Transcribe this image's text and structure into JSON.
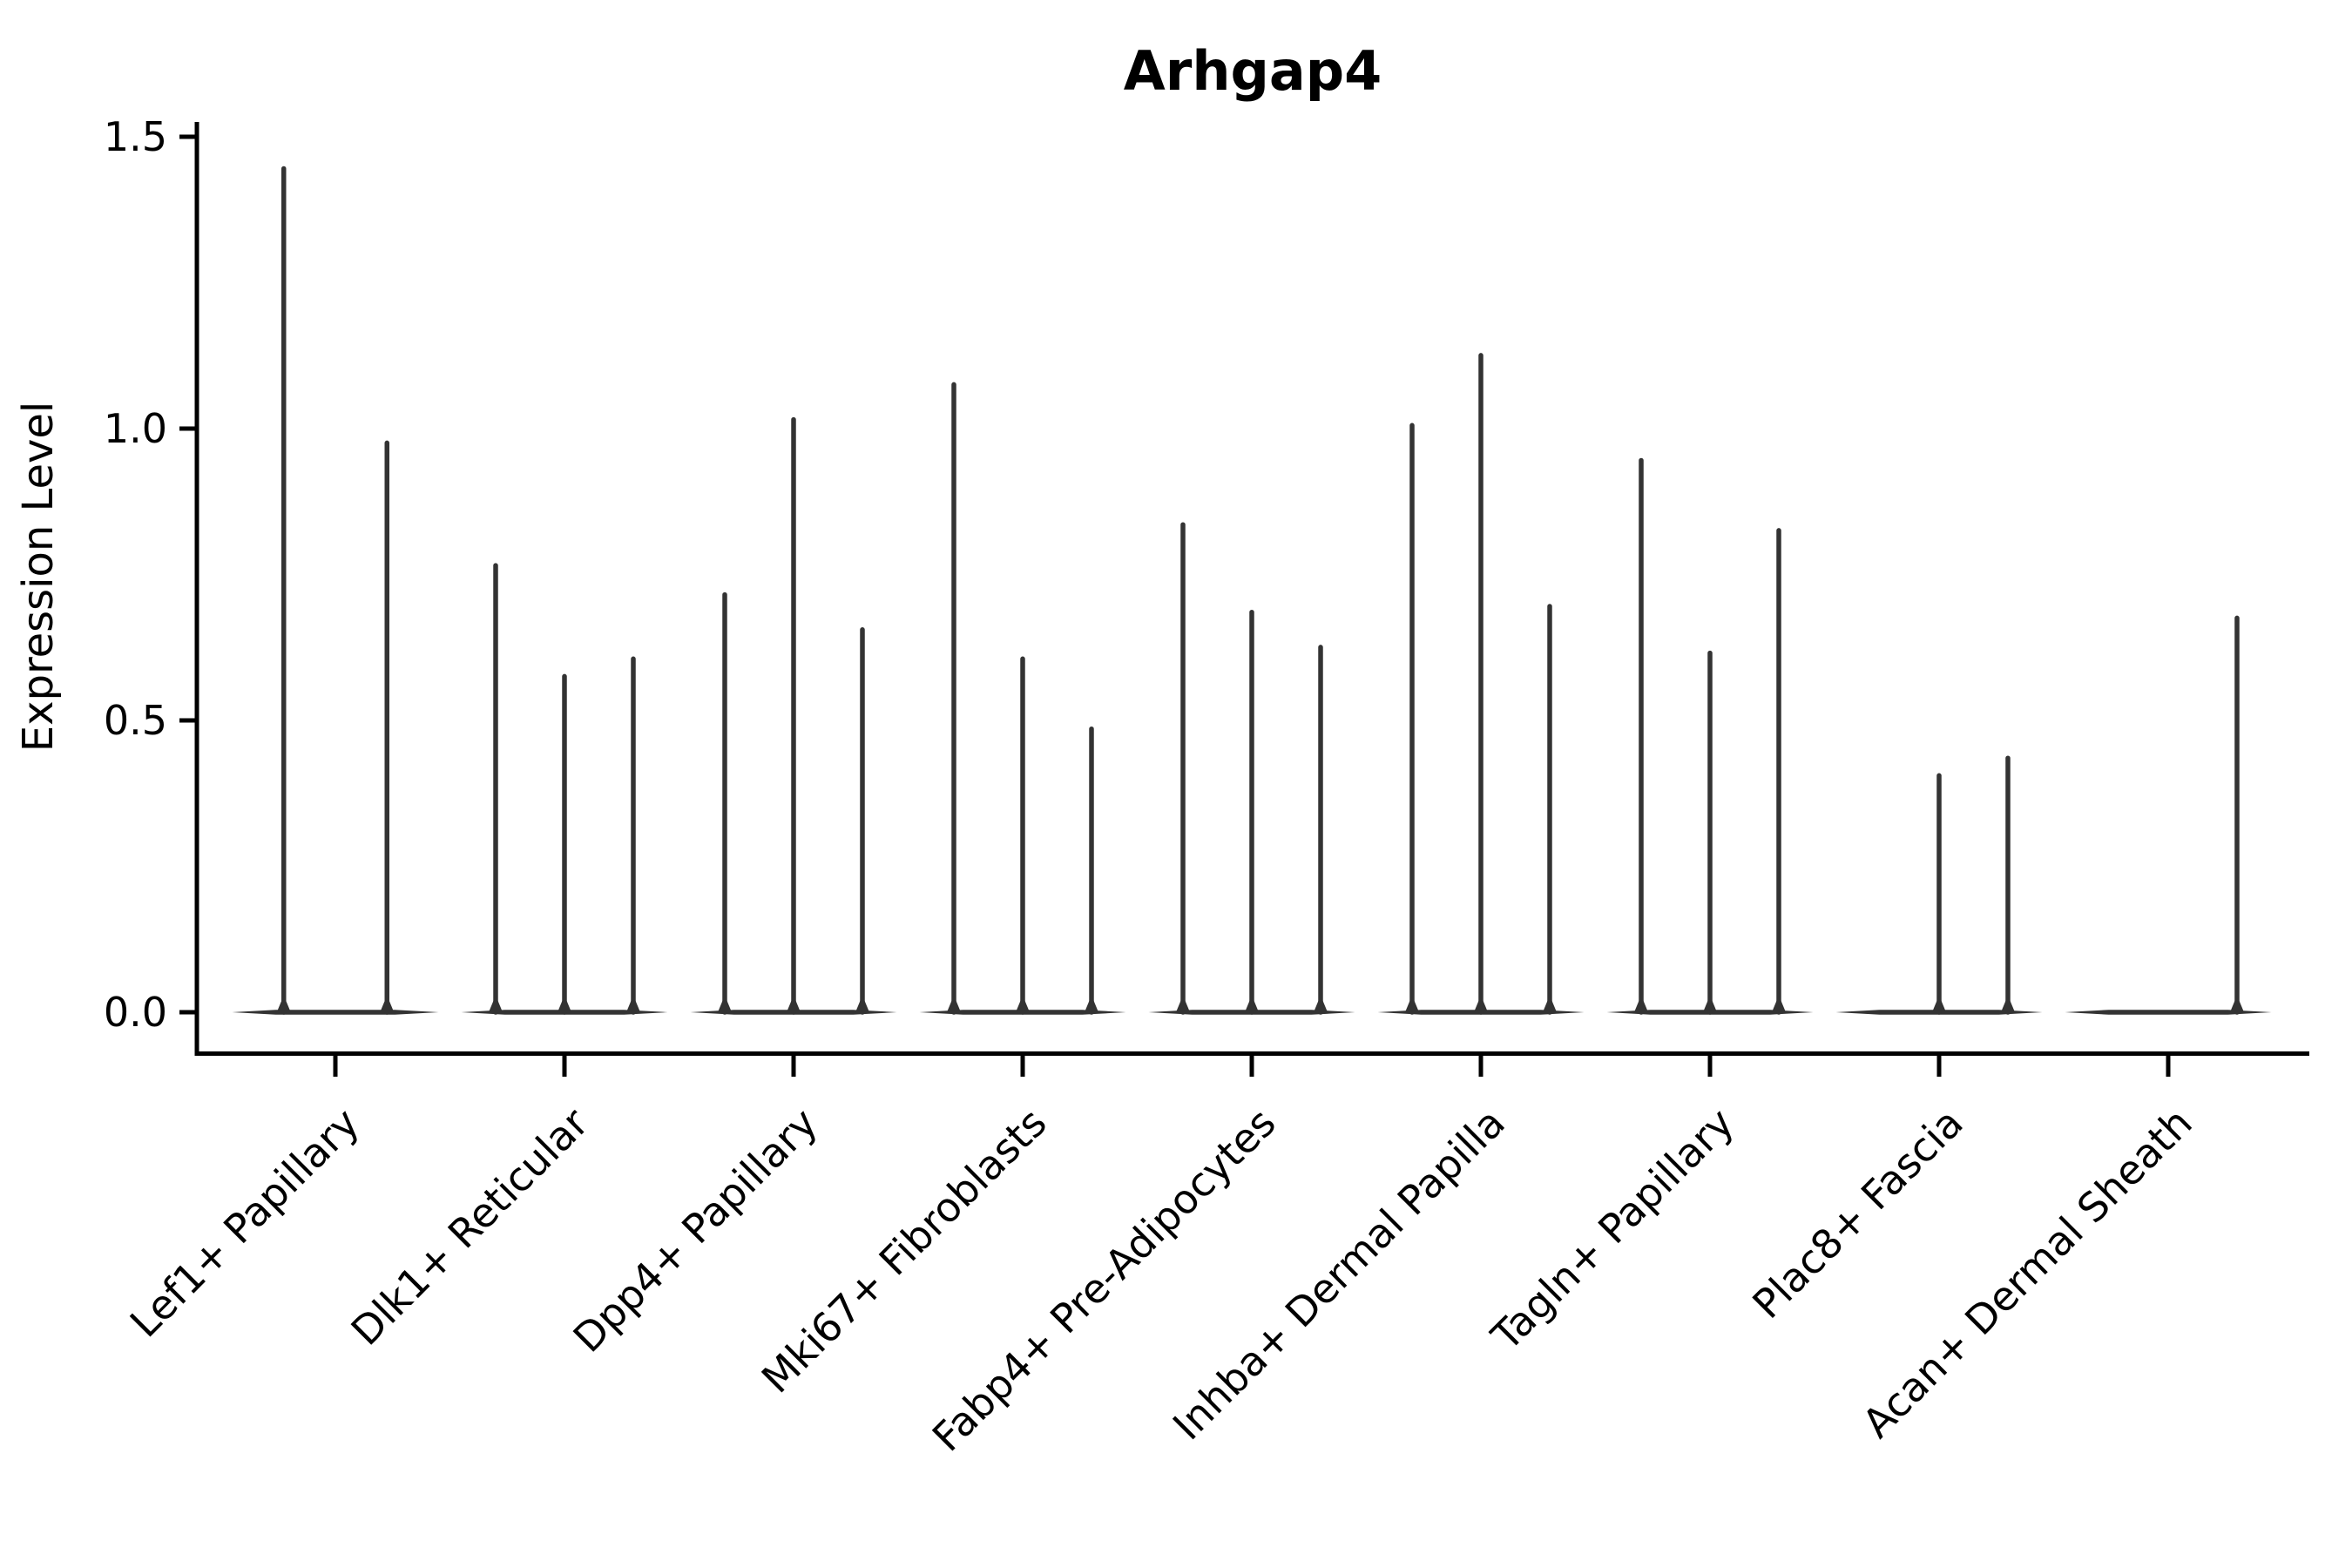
{
  "chart_data": {
    "type": "violin",
    "title": "Arhgap4",
    "ylabel": "Expression Level",
    "xlabel": "",
    "ylim": [
      0,
      1.5
    ],
    "yticks": [
      "0.0",
      "0.5",
      "1.0",
      "1.5"
    ],
    "grid": false,
    "legend": "none",
    "colors": {
      "axis_line": "#000000",
      "violin_stroke": "#333333",
      "text": "#000000",
      "background": "#ffffff"
    },
    "categories": [
      "Lef1+ Papillary",
      "Dlk1+ Reticular",
      "Dpp4+ Papillary",
      "Mki67+ Fibroblasts",
      "Fabp4+ Pre-Adipocytes",
      "Inhba+ Dermal Papilla",
      "Tagln+ Papillary",
      "Plac8+ Fascia",
      "Acan+ Dermal Sheath"
    ],
    "groups": [
      {
        "label": "Lef1+ Papillary",
        "violins": [
          {
            "slot": -0.75,
            "max": 1.45
          },
          {
            "slot": 0.75,
            "max": 0.98
          }
        ]
      },
      {
        "label": "Dlk1+ Reticular",
        "violins": [
          {
            "slot": -1,
            "max": 0.77
          },
          {
            "slot": 0,
            "max": 0.58
          },
          {
            "slot": 1,
            "max": 0.61
          }
        ]
      },
      {
        "label": "Dpp4+ Papillary",
        "violins": [
          {
            "slot": -1,
            "max": 0.72
          },
          {
            "slot": 0,
            "max": 1.02
          },
          {
            "slot": 1,
            "max": 0.66
          }
        ]
      },
      {
        "label": "Mki67+ Fibroblasts",
        "violins": [
          {
            "slot": -1,
            "max": 1.08
          },
          {
            "slot": 0,
            "max": 0.61
          },
          {
            "slot": 1,
            "max": 0.49
          }
        ]
      },
      {
        "label": "Fabp4+ Pre-Adipocytes",
        "violins": [
          {
            "slot": -1,
            "max": 0.84
          },
          {
            "slot": 0,
            "max": 0.69
          },
          {
            "slot": 1,
            "max": 0.63
          }
        ]
      },
      {
        "label": "Inhba+ Dermal Papilla",
        "violins": [
          {
            "slot": -1,
            "max": 1.01
          },
          {
            "slot": 0,
            "max": 1.13
          },
          {
            "slot": 1,
            "max": 0.7
          }
        ]
      },
      {
        "label": "Tagln+ Papillary",
        "violins": [
          {
            "slot": -1,
            "max": 0.95
          },
          {
            "slot": 0,
            "max": 0.62
          },
          {
            "slot": 1,
            "max": 0.83
          }
        ]
      },
      {
        "label": "Plac8+ Fascia",
        "violins": [
          {
            "slot": 0,
            "max": 0.41
          },
          {
            "slot": 1,
            "max": 0.44
          }
        ]
      },
      {
        "label": "Acan+ Dermal Sheath",
        "violins": [
          {
            "slot": 1,
            "max": 0.68
          }
        ]
      }
    ]
  }
}
